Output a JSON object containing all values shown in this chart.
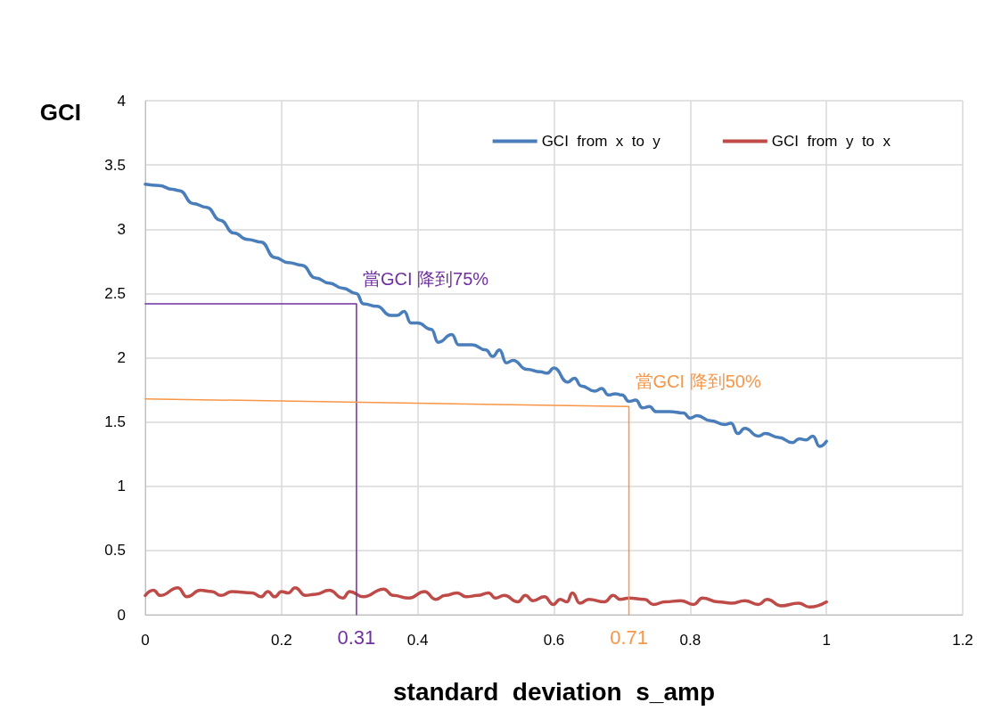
{
  "chart_data": {
    "type": "line",
    "xlabel": "standard  deviation  s_amp",
    "ylabel": "GCI",
    "xlim": [
      0,
      1.2
    ],
    "xticks": [
      0,
      0.2,
      0.4,
      0.6,
      0.8,
      1,
      1.2
    ],
    "ylim": [
      0,
      4
    ],
    "yticks": [
      0,
      0.5,
      1,
      1.5,
      2,
      2.5,
      3,
      3.5,
      4
    ],
    "annotations": [
      {
        "text": "0.31",
        "x": 0.31,
        "y": 0
      },
      {
        "text": "0.71",
        "x": 0.71,
        "y": 0
      }
    ],
    "grid": true,
    "legend": "top right",
    "marker": "none",
    "line_style": "solid",
    "series": [
      {
        "name": "GCI  from  x  to  y",
        "color": "#4a7ebb",
        "x": [
          0,
          0.02,
          0.04,
          0.05,
          0.07,
          0.09,
          0.11,
          0.13,
          0.15,
          0.17,
          0.19,
          0.21,
          0.23,
          0.25,
          0.27,
          0.29,
          0.31,
          0.32,
          0.34,
          0.36,
          0.37,
          0.38,
          0.39,
          0.4,
          0.42,
          0.43,
          0.45,
          0.46,
          0.48,
          0.5,
          0.51,
          0.52,
          0.53,
          0.54,
          0.56,
          0.58,
          0.59,
          0.6,
          0.62,
          0.63,
          0.64,
          0.66,
          0.67,
          0.68,
          0.69,
          0.7,
          0.71,
          0.72,
          0.73,
          0.74,
          0.75,
          0.77,
          0.79,
          0.8,
          0.81,
          0.83,
          0.85,
          0.86,
          0.87,
          0.88,
          0.9,
          0.91,
          0.93,
          0.95,
          0.96,
          0.97,
          0.98,
          0.99,
          1
        ],
        "values": [
          3.35,
          3.34,
          3.31,
          3.3,
          3.2,
          3.17,
          3.07,
          2.97,
          2.92,
          2.9,
          2.78,
          2.74,
          2.72,
          2.62,
          2.58,
          2.54,
          2.5,
          2.42,
          2.4,
          2.33,
          2.33,
          2.36,
          2.27,
          2.27,
          2.22,
          2.12,
          2.18,
          2.1,
          2.1,
          2.06,
          2.01,
          2.06,
          1.96,
          1.98,
          1.91,
          1.89,
          1.88,
          1.92,
          1.81,
          1.84,
          1.78,
          1.74,
          1.76,
          1.71,
          1.72,
          1.71,
          1.66,
          1.67,
          1.61,
          1.62,
          1.58,
          1.58,
          1.57,
          1.53,
          1.55,
          1.51,
          1.48,
          1.49,
          1.41,
          1.45,
          1.39,
          1.41,
          1.38,
          1.34,
          1.37,
          1.36,
          1.39,
          1.31,
          1.35
        ]
      },
      {
        "name": "GCI  from  y  to  x",
        "color": "#be4b48",
        "x": [
          0,
          0.012,
          0.022,
          0.048,
          0.061,
          0.081,
          0.098,
          0.111,
          0.127,
          0.157,
          0.17,
          0.18,
          0.19,
          0.2,
          0.21,
          0.22,
          0.235,
          0.25,
          0.27,
          0.29,
          0.3,
          0.32,
          0.35,
          0.364,
          0.387,
          0.41,
          0.426,
          0.44,
          0.458,
          0.471,
          0.488,
          0.504,
          0.514,
          0.527,
          0.547,
          0.558,
          0.569,
          0.586,
          0.599,
          0.609,
          0.619,
          0.627,
          0.638,
          0.651,
          0.674,
          0.687,
          0.697,
          0.71,
          0.733,
          0.746,
          0.763,
          0.786,
          0.805,
          0.818,
          0.841,
          0.861,
          0.88,
          0.9,
          0.913,
          0.933,
          0.959,
          0.975,
          1
        ],
        "values": [
          0.15,
          0.19,
          0.15,
          0.21,
          0.14,
          0.19,
          0.18,
          0.15,
          0.18,
          0.17,
          0.14,
          0.18,
          0.14,
          0.18,
          0.17,
          0.21,
          0.15,
          0.16,
          0.19,
          0.13,
          0.18,
          0.14,
          0.2,
          0.15,
          0.13,
          0.18,
          0.12,
          0.15,
          0.17,
          0.14,
          0.15,
          0.17,
          0.13,
          0.15,
          0.1,
          0.15,
          0.11,
          0.14,
          0.08,
          0.12,
          0.1,
          0.17,
          0.09,
          0.12,
          0.1,
          0.15,
          0.12,
          0.13,
          0.12,
          0.08,
          0.1,
          0.11,
          0.08,
          0.13,
          0.1,
          0.09,
          0.11,
          0.08,
          0.12,
          0.07,
          0.09,
          0.06,
          0.1
        ]
      },
      {
        "color": "#7030a0",
        "x": [
          0,
          0.31,
          0.31
        ],
        "values": [
          2.42,
          2.42,
          0
        ],
        "value_labels": [
          null,
          "當GCI 降到75%",
          null
        ]
      },
      {
        "color": "#f79646",
        "x": [
          0,
          0.71,
          0.71
        ],
        "values": [
          1.68,
          1.62,
          0
        ],
        "value_labels": [
          null,
          "當GCI 降到50%",
          null
        ]
      }
    ]
  }
}
